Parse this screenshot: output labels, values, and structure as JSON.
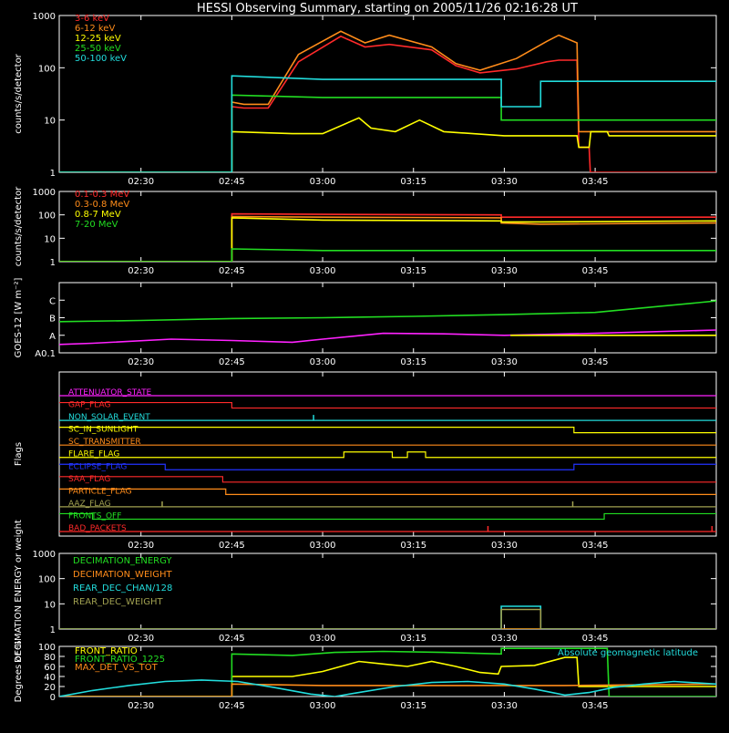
{
  "title": "HESSI Observing Summary, starting on 2005/11/26 02:16:28 UT",
  "time_ticks": [
    "02:30",
    "02:45",
    "03:00",
    "03:15",
    "03:30",
    "03:45"
  ],
  "time_tick_minutes": [
    30,
    45,
    60,
    75,
    90,
    105
  ],
  "time_range_minutes": [
    16.5,
    125
  ],
  "colors": {
    "red": "#ff2a2a",
    "orange": "#ff8c1a",
    "yellow": "#ffff00",
    "green": "#22dd22",
    "cyan": "#22dddd",
    "magenta": "#ff22ff",
    "blue": "#2233ff",
    "olive": "#a0a050",
    "axis": "#ffffff"
  },
  "chart_data": [
    {
      "type": "line",
      "ylabel": "counts/s/detector",
      "yscale": "log",
      "ylim": [
        1,
        1000
      ],
      "y_ticks": [
        "1",
        "10",
        "100",
        "1000"
      ],
      "y_tick_values": [
        1,
        10,
        100,
        1000
      ],
      "series": [
        {
          "name": "3-6 keV",
          "color": "red",
          "x": [
            16.5,
            45,
            45,
            47,
            51,
            56,
            63,
            67,
            71,
            78,
            82,
            86,
            92,
            97,
            99,
            102,
            102.3,
            104,
            104.2,
            107,
            107.3,
            125
          ],
          "y": [
            1,
            1,
            18,
            17,
            17,
            130,
            400,
            250,
            280,
            220,
            110,
            80,
            95,
            130,
            140,
            140,
            3,
            3,
            1,
            1,
            1,
            1
          ]
        },
        {
          "name": "6-12 keV",
          "color": "orange",
          "x": [
            16.5,
            45,
            45,
            47,
            51,
            56,
            63,
            67,
            71,
            78,
            82,
            86,
            92,
            97,
            99,
            102,
            102.3,
            107,
            125
          ],
          "y": [
            1,
            1,
            22,
            20,
            20,
            180,
            500,
            300,
            420,
            250,
            120,
            90,
            150,
            320,
            420,
            300,
            6,
            6,
            6
          ]
        },
        {
          "name": "12-25 keV",
          "color": "yellow",
          "x": [
            16.5,
            45,
            45,
            55,
            60,
            66,
            68,
            72,
            76,
            80,
            90,
            102,
            102.3,
            104,
            104.3,
            107,
            107.3,
            125
          ],
          "y": [
            1,
            1,
            6,
            5.5,
            5.5,
            11,
            7,
            6,
            10,
            6,
            5,
            5,
            3,
            3,
            6,
            6,
            5,
            5
          ]
        },
        {
          "name": "25-50 keV",
          "color": "green",
          "x": [
            16.5,
            45,
            45,
            60,
            89.5,
            89.5,
            104,
            125
          ],
          "y": [
            1,
            1,
            30,
            27,
            27,
            10,
            10,
            10
          ]
        },
        {
          "name": "50-100 keV",
          "color": "cyan",
          "x": [
            16.5,
            45,
            45,
            60,
            89.5,
            89.5,
            96,
            96,
            125
          ],
          "y": [
            1,
            1,
            70,
            60,
            60,
            18,
            18,
            55,
            55
          ]
        }
      ]
    },
    {
      "type": "line",
      "ylabel": "counts/s/detector",
      "yscale": "log",
      "ylim": [
        1,
        1000
      ],
      "y_ticks": [
        "1",
        "10",
        "100",
        "1000"
      ],
      "y_tick_values": [
        1,
        10,
        100,
        1000
      ],
      "series": [
        {
          "name": "0.1-0.3 MeV",
          "color": "red",
          "x": [
            16.5,
            45,
            45,
            60,
            89.5,
            89.5,
            96,
            125
          ],
          "y": [
            1,
            1,
            110,
            105,
            100,
            80,
            80,
            80
          ]
        },
        {
          "name": "0.3-0.8 MeV",
          "color": "orange",
          "x": [
            16.5,
            45,
            45,
            60,
            89.5,
            89.5,
            96,
            125
          ],
          "y": [
            1,
            1,
            85,
            80,
            75,
            45,
            40,
            45
          ]
        },
        {
          "name": "0.8-7 MeV",
          "color": "yellow",
          "x": [
            16.5,
            45,
            45,
            60,
            89.5,
            89.5,
            96,
            125
          ],
          "y": [
            1,
            1,
            75,
            60,
            55,
            50,
            50,
            55
          ]
        },
        {
          "name": "7-20 MeV",
          "color": "green",
          "x": [
            16.5,
            45,
            45,
            60,
            89.5,
            104,
            125
          ],
          "y": [
            1,
            1,
            3.5,
            3,
            3,
            3,
            3
          ]
        }
      ]
    },
    {
      "type": "line",
      "ylabel": "GOES-12 [W m⁻²]",
      "yscale": "log",
      "ylim": [
        0.1,
        1000
      ],
      "y_ticks": [
        "A0.1",
        "A",
        "B",
        "C"
      ],
      "y_tick_values": [
        0.1,
        1,
        10,
        100
      ],
      "series": [
        {
          "name": "",
          "color": "green",
          "x": [
            16.5,
            30,
            45,
            60,
            75,
            90,
            105,
            125
          ],
          "y": [
            6,
            7,
            9,
            10,
            12,
            15,
            20,
            90
          ]
        },
        {
          "name": "",
          "color": "magenta",
          "x": [
            16.5,
            22,
            35,
            45,
            55,
            60,
            70,
            80,
            90,
            105,
            125
          ],
          "y": [
            0.3,
            0.35,
            0.6,
            0.5,
            0.4,
            0.6,
            1.3,
            1.2,
            1.0,
            1.3,
            2.0
          ]
        },
        {
          "name": "",
          "color": "yellow",
          "x": [
            91,
            125
          ],
          "y": [
            1,
            1
          ]
        }
      ]
    },
    {
      "type": "flags",
      "ylabel": "Flags",
      "flags": [
        {
          "name": "ATTENUATOR_STATE",
          "color": "magenta",
          "segments": [
            [
              16.5,
              125,
              0
            ]
          ]
        },
        {
          "name": "GAP_FLAG",
          "color": "red",
          "segments": [
            [
              16.5,
              45,
              1
            ],
            [
              45,
              125,
              0
            ]
          ]
        },
        {
          "name": "NON_SOLAR_EVENT",
          "color": "cyan",
          "segments": [
            [
              16.5,
              125,
              0
            ]
          ],
          "spikes": [
            58.5
          ]
        },
        {
          "name": "SC_IN_SUNLIGHT",
          "color": "yellow",
          "segments": [
            [
              16.5,
              101.5,
              1
            ],
            [
              101.5,
              125,
              0
            ]
          ]
        },
        {
          "name": "SC_TRANSMITTER",
          "color": "orange",
          "segments": [
            [
              16.5,
              125,
              0
            ]
          ]
        },
        {
          "name": "FLARE_FLAG",
          "color": "yellow",
          "segments": [
            [
              16.5,
              63.5,
              0
            ],
            [
              63.5,
              71.5,
              1
            ],
            [
              71.5,
              74,
              0
            ],
            [
              74,
              77,
              1
            ],
            [
              77,
              125,
              0
            ]
          ]
        },
        {
          "name": "ECLIPSE_FLAG",
          "color": "blue",
          "segments": [
            [
              16.5,
              34,
              1
            ],
            [
              34,
              101.5,
              0
            ],
            [
              101.5,
              125,
              1
            ]
          ]
        },
        {
          "name": "SAA_FLAG",
          "color": "red",
          "segments": [
            [
              16.5,
              43.5,
              1
            ],
            [
              43.5,
              125,
              0
            ]
          ]
        },
        {
          "name": "PARTICLE_FLAG",
          "color": "orange",
          "segments": [
            [
              16.5,
              44,
              1
            ],
            [
              44,
              125,
              0
            ]
          ]
        },
        {
          "name": "AAZ_FLAG",
          "color": "olive",
          "segments": [
            [
              16.5,
              125,
              0
            ]
          ],
          "spikes": [
            33.5,
            101.3
          ]
        },
        {
          "name": "FRONTS_OFF",
          "color": "green",
          "segments": [
            [
              16.5,
              22,
              1
            ],
            [
              22,
              106.5,
              0
            ],
            [
              106.5,
              125,
              1
            ]
          ]
        },
        {
          "name": "BAD_PACKETS",
          "color": "red",
          "segments": [
            [
              16.5,
              125,
              0
            ]
          ],
          "spikes": [
            87.3,
            124.3
          ]
        }
      ]
    },
    {
      "type": "line",
      "ylabel": "DECIMATION ENERGY or weight",
      "yscale": "log",
      "ylim": [
        1,
        1000
      ],
      "y_ticks": [
        "1",
        "10",
        "100",
        "1000"
      ],
      "y_tick_values": [
        1,
        10,
        100,
        1000
      ],
      "series": [
        {
          "name": "DECIMATION_ENERGY",
          "color": "green",
          "x": [
            16.5,
            125
          ],
          "y": [
            1,
            1
          ]
        },
        {
          "name": "DECIMATION_WEIGHT",
          "color": "orange",
          "x": [
            16.5,
            125
          ],
          "y": [
            1,
            1
          ]
        },
        {
          "name": "REAR_DEC_CHAN/128",
          "color": "cyan",
          "x": [
            16.5,
            89.5,
            89.5,
            96,
            96,
            125
          ],
          "y": [
            1,
            1,
            8,
            8,
            1,
            1
          ]
        },
        {
          "name": "REAR_DEC_WEIGHT",
          "color": "olive",
          "x": [
            16.5,
            89.5,
            89.5,
            96,
            96,
            125
          ],
          "y": [
            1,
            1,
            6,
            6,
            1,
            1
          ]
        }
      ]
    },
    {
      "type": "line",
      "ylabel": "Degrees or %",
      "yscale": "linear",
      "ylim": [
        0,
        100
      ],
      "y_ticks": [
        "0",
        "20",
        "40",
        "60",
        "80",
        "100"
      ],
      "y_tick_values": [
        0,
        20,
        40,
        60,
        80,
        100
      ],
      "annotation": "Absolute geomagnetic latitude",
      "series": [
        {
          "name": "FRONT_RATIO",
          "color": "yellow",
          "x": [
            16.5,
            45,
            45,
            50,
            55,
            60,
            63,
            66,
            70,
            74,
            78,
            82,
            86,
            89,
            89.5,
            95,
            100,
            102,
            102.3,
            107,
            107.3,
            125
          ],
          "y": [
            0,
            0,
            40,
            40,
            40,
            50,
            60,
            70,
            65,
            60,
            70,
            60,
            48,
            45,
            60,
            62,
            78,
            78,
            20,
            20,
            20,
            20
          ]
        },
        {
          "name": "FRONT_RATIO_1225",
          "color": "green",
          "x": [
            16.5,
            45,
            45,
            55,
            62,
            70,
            80,
            89.5,
            89.5,
            102,
            104,
            107,
            107.3,
            125
          ],
          "y": [
            0,
            0,
            85,
            82,
            88,
            90,
            88,
            85,
            96,
            96,
            96,
            96,
            0,
            0
          ]
        },
        {
          "name": "MAX_DET_VS_TOT",
          "color": "orange",
          "x": [
            16.5,
            45,
            45,
            60,
            80,
            100,
            125
          ],
          "y": [
            0,
            0,
            25,
            22,
            22,
            22,
            25
          ]
        },
        {
          "name": "",
          "color": "cyan",
          "x": [
            16.5,
            22,
            28,
            34,
            40,
            46,
            52,
            58,
            62,
            66,
            72,
            78,
            84,
            90,
            95,
            100,
            104,
            108,
            113,
            118,
            125
          ],
          "y": [
            0,
            12,
            22,
            30,
            33,
            30,
            18,
            5,
            0,
            8,
            20,
            28,
            30,
            25,
            15,
            3,
            8,
            18,
            25,
            30,
            25
          ]
        }
      ]
    }
  ]
}
